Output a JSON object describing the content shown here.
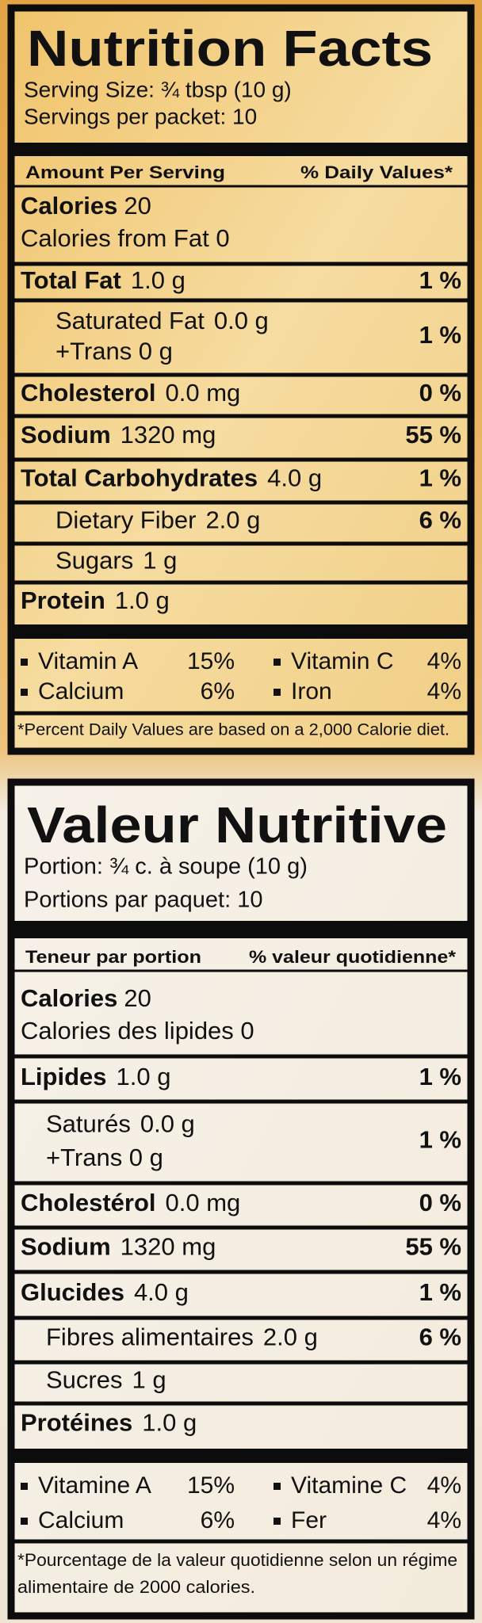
{
  "panels": [
    {
      "title": "Nutrition Facts",
      "serving_lines": [
        "Serving Size: ¾ tbsp (10 g)",
        "Servings per packet: 10"
      ],
      "header": {
        "left": "Amount Per Serving",
        "right": "% Daily Values*"
      },
      "calories": {
        "label": "Calories",
        "value": "20"
      },
      "calories_from_fat": "Calories from Fat 0",
      "nutrients": [
        {
          "name": "Total Fat",
          "amount": "1.0 g",
          "dv": "1 %"
        },
        {
          "name": "Saturated Fat",
          "amount": "0.0 g",
          "second_line": "+Trans 0 g",
          "dv": "1 %"
        },
        {
          "name": "Cholesterol",
          "amount": "0.0 mg",
          "dv": "0 %"
        },
        {
          "name": "Sodium",
          "amount": "1320 mg",
          "dv": "55 %"
        },
        {
          "name": "Total Carbohydrates",
          "amount": "4.0 g",
          "dv": "1 %"
        },
        {
          "name": "Dietary Fiber",
          "amount": "2.0 g",
          "dv": "6 %"
        },
        {
          "name": "Sugars",
          "amount": "1 g"
        },
        {
          "name": "Protein",
          "amount": "1.0 g"
        }
      ],
      "vitamins": [
        {
          "name": "Vitamin A",
          "dv": "15%"
        },
        {
          "name": "Vitamin C",
          "dv": "4%"
        },
        {
          "name": "Calcium",
          "dv": "6%"
        },
        {
          "name": "Iron",
          "dv": "4%"
        }
      ],
      "footnote": [
        "*Percent Daily Values are based on a 2,000 Calorie diet."
      ]
    },
    {
      "title": "Valeur Nutritive",
      "serving_lines": [
        "Portion: ¾ c. à soupe (10 g)",
        "Portions par paquet: 10"
      ],
      "header": {
        "left": "Teneur par portion",
        "right": "% valeur quotidienne*"
      },
      "calories": {
        "label": "Calories",
        "value": "20"
      },
      "calories_from_fat": "Calories des lipides 0",
      "nutrients": [
        {
          "name": "Lipides",
          "amount": "1.0 g",
          "dv": "1 %"
        },
        {
          "name": "Saturés",
          "amount": "0.0 g",
          "second_line": "+Trans 0 g",
          "dv": "1 %"
        },
        {
          "name": "Cholestérol",
          "amount": "0.0 mg",
          "dv": "0 %"
        },
        {
          "name": "Sodium",
          "amount": "1320 mg",
          "dv": "55 %"
        },
        {
          "name": "Glucides",
          "amount": "4.0 g",
          "dv": "1 %"
        },
        {
          "name": "Fibres alimentaires",
          "amount": "2.0 g",
          "dv": "6 %"
        },
        {
          "name": "Sucres",
          "amount": "1 g"
        },
        {
          "name": "Protéines",
          "amount": "1.0 g"
        }
      ],
      "vitamins": [
        {
          "name": "Vitamine A",
          "dv": "15%"
        },
        {
          "name": "Vitamine C",
          "dv": "4%"
        },
        {
          "name": "Calcium",
          "dv": "6%"
        },
        {
          "name": "Fer",
          "dv": "4%"
        }
      ],
      "footnote": [
        "*Pourcentage de la valeur quotidienne selon un régime",
        "alimentaire de 2000 calories."
      ]
    }
  ]
}
